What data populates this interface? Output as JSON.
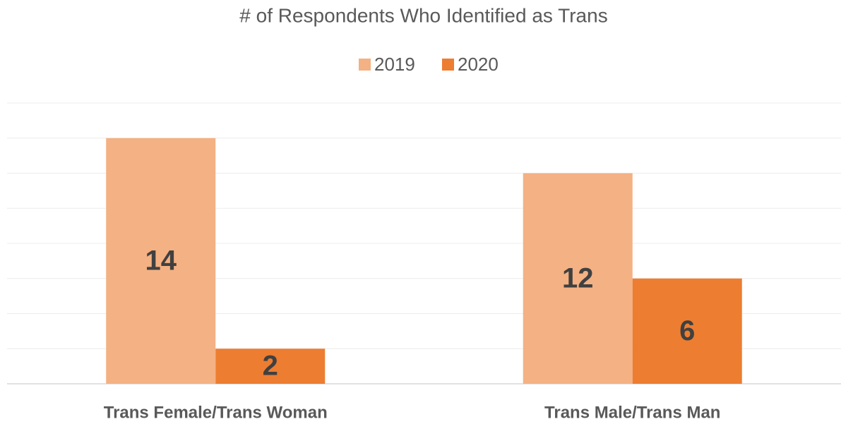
{
  "chart_data": {
    "type": "bar",
    "title": "# of Respondents Who Identified as Trans",
    "categories": [
      "Trans Female/Trans Woman",
      "Trans Male/Trans Man"
    ],
    "series": [
      {
        "name": "2019",
        "color": "#f4b183",
        "values": [
          14,
          12
        ]
      },
      {
        "name": "2020",
        "color": "#ed7d31",
        "values": [
          2,
          6
        ]
      }
    ],
    "ylim": [
      0,
      16
    ],
    "yticks": [
      0,
      2,
      4,
      6,
      8,
      10,
      12,
      14,
      16
    ],
    "grid": true,
    "legend": "top"
  }
}
